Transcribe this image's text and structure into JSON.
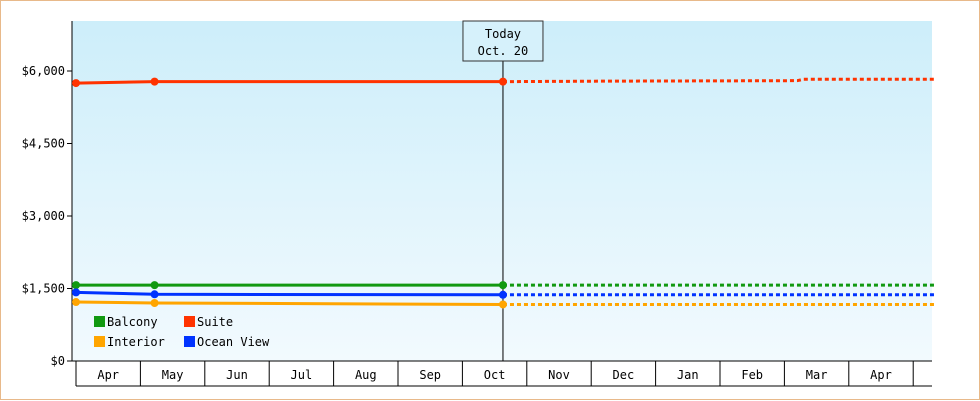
{
  "chart_data": {
    "type": "line",
    "y_ticks": [
      "$0",
      "$1,500",
      "$3,000",
      "$4,500",
      "$6,000"
    ],
    "y_tick_values": [
      0,
      1500,
      3000,
      4500,
      6000
    ],
    "ylim": [
      0,
      7000
    ],
    "months": [
      "Apr",
      "May",
      "Jun",
      "Jul",
      "Aug",
      "Sep",
      "Oct",
      "Nov",
      "Dec",
      "Jan",
      "Feb",
      "Mar",
      "Apr"
    ],
    "today": {
      "line1": "Today",
      "line2": "Oct. 20",
      "month_position": 6.63
    },
    "grid": false,
    "legend_position": "bottom-left",
    "legend": [
      [
        "Balcony",
        "Suite"
      ],
      [
        "Interior",
        "Ocean View"
      ]
    ],
    "series": [
      {
        "name": "Suite",
        "color": "#ff3300",
        "points": [
          [
            0,
            5750
          ],
          [
            1.22,
            5780
          ],
          [
            6.63,
            5780
          ]
        ],
        "projection": [
          [
            6.63,
            5780
          ],
          [
            8.2,
            5790
          ],
          [
            11.2,
            5800
          ],
          [
            11.3,
            5830
          ],
          [
            13.35,
            5830
          ]
        ]
      },
      {
        "name": "Balcony",
        "color": "#119911",
        "points": [
          [
            0,
            1570
          ],
          [
            1.22,
            1570
          ],
          [
            6.63,
            1570
          ]
        ],
        "projection": [
          [
            6.63,
            1570
          ],
          [
            13.35,
            1570
          ]
        ]
      },
      {
        "name": "Ocean View",
        "color": "#0033ff",
        "points": [
          [
            0,
            1420
          ],
          [
            1.22,
            1380
          ],
          [
            6.63,
            1370
          ]
        ],
        "projection": [
          [
            6.63,
            1370
          ],
          [
            13.35,
            1370
          ]
        ]
      },
      {
        "name": "Interior",
        "color": "#ffa500",
        "points": [
          [
            0,
            1220
          ],
          [
            1.22,
            1200
          ],
          [
            6.63,
            1170
          ]
        ],
        "projection": [
          [
            6.63,
            1170
          ],
          [
            13.35,
            1170
          ]
        ]
      }
    ]
  }
}
